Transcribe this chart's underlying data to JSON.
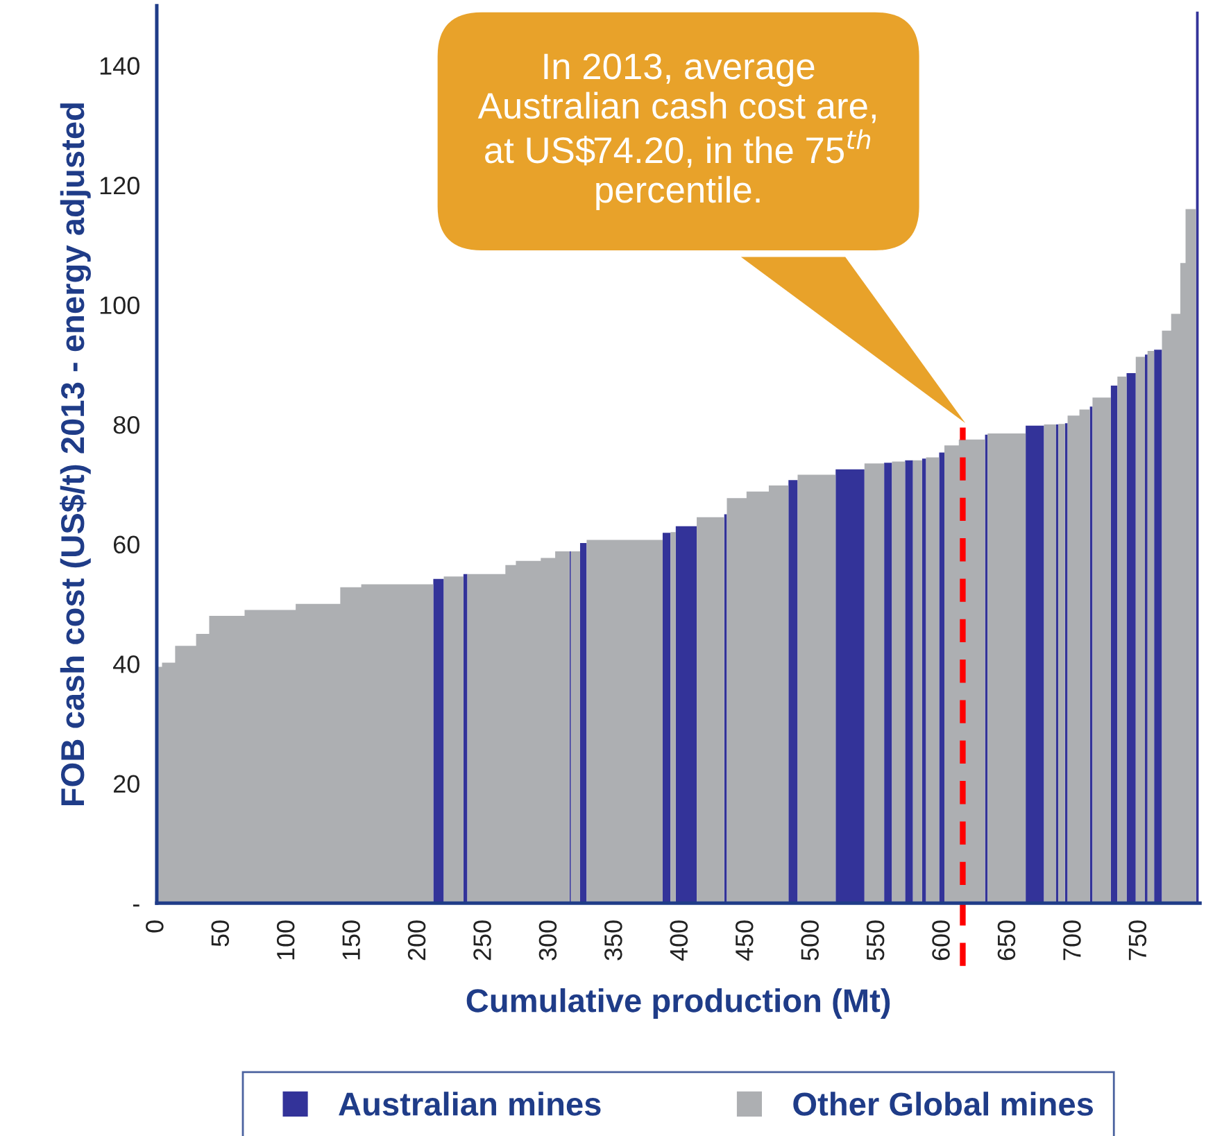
{
  "chart_data": {
    "type": "area",
    "xlabel": "Cumulative production (Mt)",
    "ylabel": "FOB cash cost (US$/t) 2013 - energy adjusted",
    "series": [
      {
        "name": "Australian mines",
        "color": "#333399",
        "x": [
          211,
          219,
          null,
          234,
          237,
          null,
          315,
          316,
          null,
          323,
          328,
          null,
          386,
          392,
          null,
          396,
          412,
          null,
          433,
          435,
          null,
          482,
          489,
          null,
          518,
          540,
          null,
          555,
          561,
          null,
          571,
          577,
          null,
          584,
          587,
          null,
          597,
          601,
          null,
          632,
          634,
          null,
          663,
          677,
          null,
          686,
          688,
          null,
          693,
          695,
          null,
          712,
          714,
          null,
          728,
          733,
          null,
          740,
          747,
          null,
          754,
          756,
          null,
          761,
          767,
          null,
          793,
          795
        ],
        "values": [
          54.2,
          54.2,
          null,
          55,
          55,
          null,
          58.8,
          58.8,
          null,
          60.2,
          60.2,
          null,
          61.9,
          61.9,
          null,
          63,
          63,
          null,
          65,
          65,
          null,
          70.7,
          70.7,
          null,
          72.5,
          72.5,
          null,
          73.6,
          73.6,
          null,
          74,
          74,
          null,
          74.3,
          74.3,
          null,
          75.3,
          75.3,
          null,
          78.3,
          78.3,
          null,
          79.8,
          79.8,
          null,
          80,
          80,
          null,
          80.2,
          80.2,
          null,
          83,
          83,
          null,
          86.5,
          86.5,
          null,
          88.6,
          88.6,
          null,
          91.7,
          91.7,
          null,
          92.5,
          92.5,
          null,
          149,
          149
        ]
      },
      {
        "name": "Other Global mines",
        "color": "#adafb2",
        "x": [
          0,
          4,
          4,
          14,
          14,
          30,
          30,
          40,
          40,
          67,
          67,
          106,
          106,
          140,
          140,
          156,
          156,
          211,
          null,
          219,
          234,
          null,
          237,
          266,
          266,
          274,
          274,
          293,
          293,
          304,
          304,
          315,
          null,
          316,
          323,
          null,
          328,
          386,
          null,
          392,
          396,
          null,
          412,
          433,
          null,
          435,
          450,
          450,
          467,
          467,
          482,
          null,
          489,
          518,
          null,
          540,
          555,
          null,
          561,
          571,
          null,
          577,
          584,
          null,
          587,
          597,
          null,
          601,
          612,
          612,
          632,
          null,
          634,
          663,
          null,
          677,
          686,
          null,
          688,
          693,
          null,
          695,
          704,
          704,
          712,
          null,
          714,
          728,
          null,
          733,
          740,
          null,
          747,
          754,
          null,
          756,
          761,
          null,
          767,
          774,
          774,
          781,
          781,
          785,
          785,
          793
        ],
        "values": [
          39.5,
          39.5,
          40.2,
          40.2,
          43,
          43,
          45,
          45,
          48,
          48,
          49,
          49,
          50,
          50,
          52.8,
          52.8,
          53.3,
          53.3,
          null,
          54.6,
          54.6,
          null,
          55,
          55,
          56.5,
          56.5,
          57.2,
          57.2,
          57.7,
          57.7,
          58.8,
          58.8,
          null,
          58.8,
          58.8,
          null,
          60.7,
          60.7,
          null,
          62,
          62,
          null,
          64.5,
          64.5,
          null,
          67.7,
          67.7,
          68.8,
          68.8,
          69.8,
          69.8,
          null,
          71.6,
          71.6,
          null,
          73.5,
          73.5,
          null,
          73.8,
          73.8,
          null,
          74,
          74,
          null,
          74.5,
          74.5,
          null,
          76.5,
          76.5,
          77.5,
          77.5,
          null,
          78.5,
          78.5,
          null,
          80,
          80,
          null,
          80.1,
          80.1,
          null,
          81.5,
          81.5,
          82.5,
          82.5,
          null,
          84.5,
          84.5,
          null,
          88,
          88,
          null,
          91.3,
          91.3,
          null,
          92.3,
          92.3,
          null,
          95.7,
          95.7,
          98.5,
          98.5,
          107,
          107,
          116,
          116
        ]
      }
    ],
    "xlim": [
      0,
      796
    ],
    "xticks": [
      0,
      50,
      100,
      150,
      200,
      250,
      300,
      350,
      400,
      450,
      500,
      550,
      600,
      650,
      700,
      750
    ],
    "ylim": [
      0,
      150
    ],
    "yticks": [
      {
        "value": 0,
        "label": "-"
      },
      20,
      40,
      60,
      80,
      100,
      120,
      140
    ],
    "ref_lines": [
      {
        "axis": "x",
        "value": 615,
        "color": "#ff0000",
        "line_style": "dashed"
      }
    ],
    "annotations": [
      "In 2013, average\nAustralian cash cost are,\nat US$74.20, in the 75$^{th}$\npercentile."
    ],
    "legend": "bottom",
    "grid": false
  }
}
